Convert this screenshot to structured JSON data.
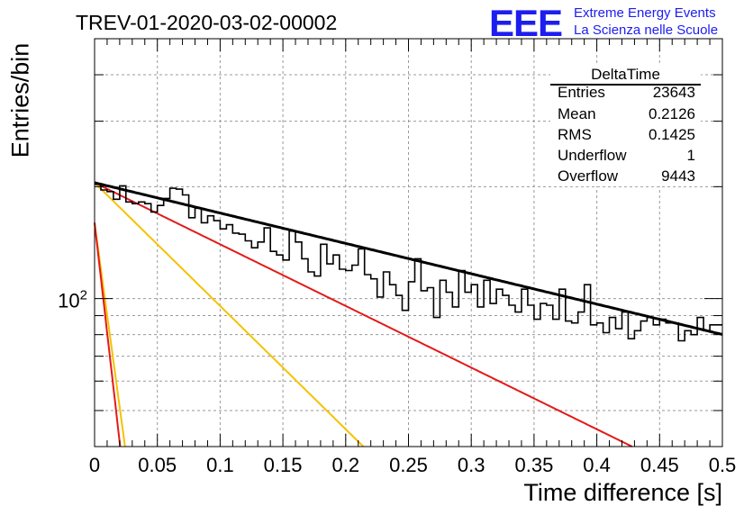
{
  "chart_data": {
    "type": "line",
    "title": "TREV-01-2020-03-02-00002",
    "xlabel": "Time difference [s]",
    "ylabel": "Entries/bin",
    "xlim": [
      0,
      0.5
    ],
    "ylim": [
      40,
      500
    ],
    "yscale": "log",
    "grid": true,
    "x_ticks": [
      "0",
      "0.05",
      "0.1",
      "0.15",
      "0.2",
      "0.25",
      "0.3",
      "0.35",
      "0.4",
      "0.45",
      "0.5"
    ],
    "y_tick_label": "10^2",
    "histogram": {
      "name": "DeltaTime",
      "bin_width": 0.005,
      "values": [
        203,
        196,
        194,
        185,
        201,
        182,
        180,
        182,
        180,
        171,
        178,
        186,
        198,
        197,
        190,
        165,
        175,
        160,
        167,
        162,
        154,
        158,
        150,
        149,
        143,
        137,
        142,
        155,
        134,
        131,
        127,
        152,
        142,
        128,
        118,
        115,
        140,
        124,
        131,
        120,
        119,
        123,
        136,
        116,
        113,
        101,
        118,
        109,
        102,
        93,
        111,
        128,
        105,
        107,
        89,
        112,
        104,
        95,
        119,
        104,
        109,
        95,
        112,
        97,
        106,
        102,
        96,
        92,
        106,
        96,
        88,
        97,
        96,
        88,
        106,
        87,
        86,
        92,
        109,
        85,
        86,
        81,
        89,
        83,
        92,
        78,
        82,
        87,
        89,
        85,
        88,
        86,
        86,
        77,
        82,
        80,
        89,
        82,
        85,
        85
      ]
    },
    "fit": {
      "a": 205,
      "tau": 0.532,
      "x_range": [
        0,
        0.5
      ],
      "color": "#000000"
    },
    "components": [
      {
        "a": 205,
        "tau": 0.262,
        "color": "#e31a1a"
      },
      {
        "a": 205,
        "tau": 0.131,
        "color": "#f5c200"
      },
      {
        "a": 160,
        "tau": 0.0175,
        "color": "#f5c200"
      },
      {
        "a": 160,
        "tau": 0.0147,
        "color": "#e31a1a"
      }
    ]
  },
  "logo": {
    "text": "EEE",
    "line1": "Extreme Energy Events",
    "line2": "La Scienza nelle Scuole"
  },
  "stats": {
    "title": "DeltaTime",
    "rows": [
      {
        "label": "Entries",
        "value": "23643"
      },
      {
        "label": "Mean",
        "value": "0.2126"
      },
      {
        "label": "RMS",
        "value": "0.1425"
      },
      {
        "label": "Underflow",
        "value": "1"
      },
      {
        "label": "Overflow",
        "value": "9443"
      }
    ]
  }
}
